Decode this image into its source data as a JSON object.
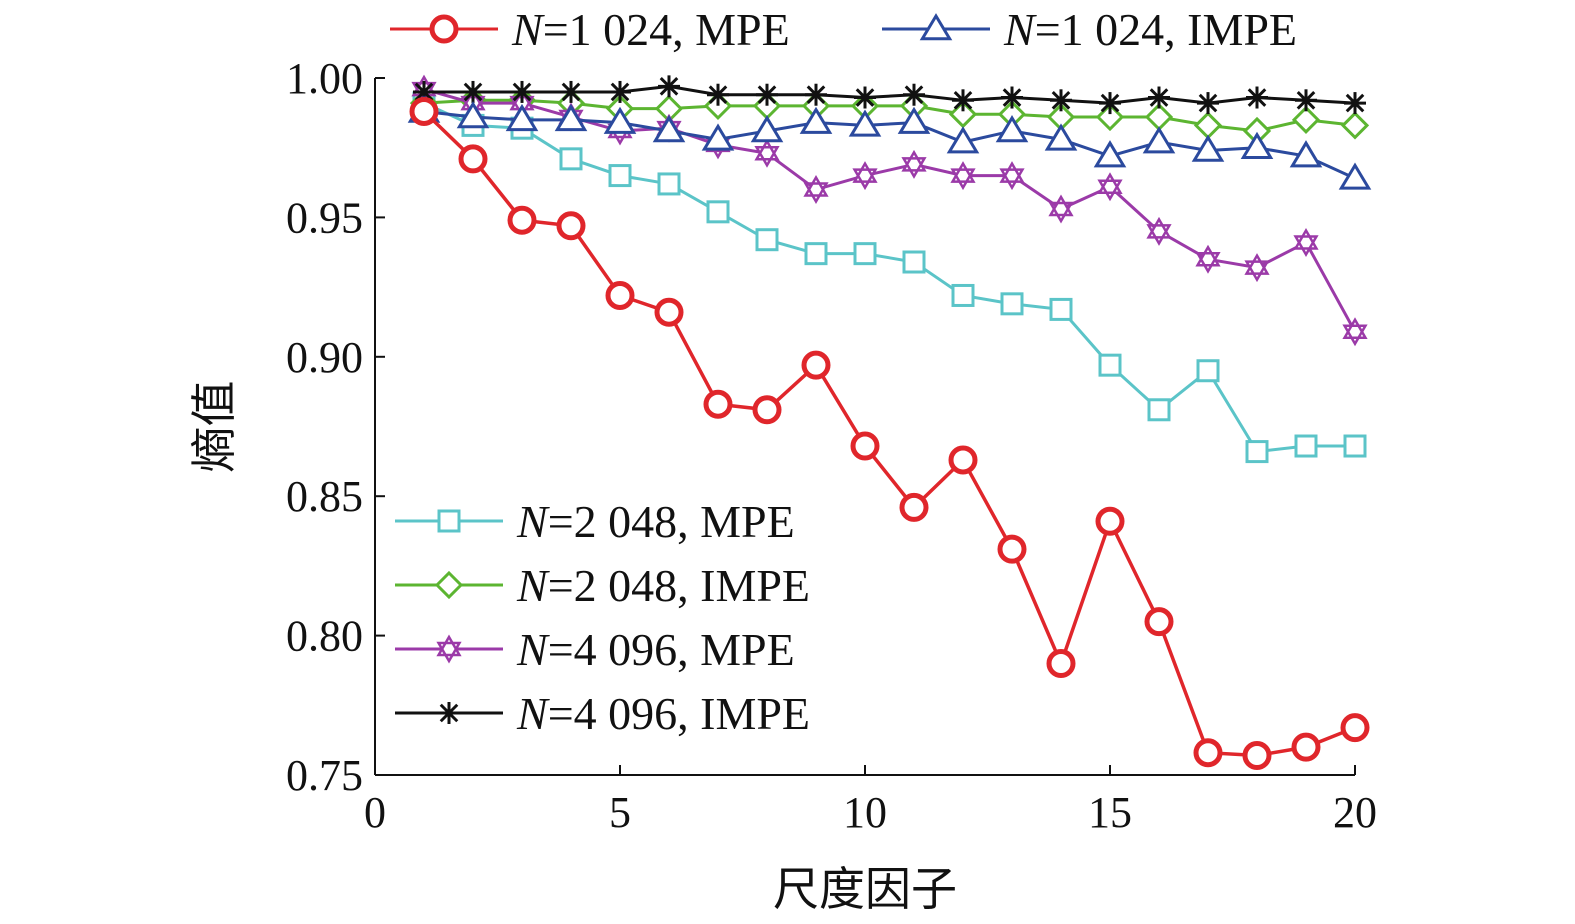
{
  "chart_data": {
    "type": "line",
    "title": "",
    "xlabel": "尺度因子",
    "ylabel": "熵值",
    "xlim": [
      0,
      20
    ],
    "ylim": [
      0.75,
      1.0
    ],
    "xticks": [
      0,
      5,
      10,
      15,
      20
    ],
    "xtick_labels": [
      "0",
      "5",
      "10",
      "15",
      "20"
    ],
    "yticks": [
      0.75,
      0.8,
      0.85,
      0.9,
      0.95,
      1.0
    ],
    "ytick_labels": [
      "0.75",
      "0.80",
      "0.85",
      "0.90",
      "0.95",
      "1.00"
    ],
    "x": [
      1,
      2,
      3,
      4,
      5,
      6,
      7,
      8,
      9,
      10,
      11,
      12,
      13,
      14,
      15,
      16,
      17,
      18,
      19,
      20
    ],
    "series": [
      {
        "name_italic": "N",
        "name_rest": "=1 024, MPE",
        "color": "#e0262b",
        "marker": "circle",
        "values": [
          0.988,
          0.971,
          0.949,
          0.947,
          0.922,
          0.916,
          0.883,
          0.881,
          0.897,
          0.868,
          0.846,
          0.863,
          0.831,
          0.79,
          0.841,
          0.805,
          0.758,
          0.757,
          0.76,
          0.767
        ]
      },
      {
        "name_italic": "N",
        "name_rest": "=1 024, IMPE",
        "color": "#2b4a9e",
        "marker": "triangle",
        "values": [
          0.988,
          0.986,
          0.985,
          0.985,
          0.984,
          0.981,
          0.978,
          0.981,
          0.984,
          0.983,
          0.984,
          0.977,
          0.981,
          0.978,
          0.972,
          0.977,
          0.974,
          0.975,
          0.972,
          0.964
        ]
      },
      {
        "name_italic": "N",
        "name_rest": "=2 048, MPE",
        "color": "#5bc4c8",
        "marker": "square",
        "values": [
          0.991,
          0.983,
          0.982,
          0.971,
          0.965,
          0.962,
          0.952,
          0.942,
          0.937,
          0.937,
          0.934,
          0.922,
          0.919,
          0.917,
          0.897,
          0.881,
          0.895,
          0.866,
          0.868,
          0.868
        ]
      },
      {
        "name_italic": "N",
        "name_rest": "=2 048, IMPE",
        "color": "#5cb531",
        "marker": "diamond",
        "values": [
          0.991,
          0.992,
          0.992,
          0.991,
          0.989,
          0.989,
          0.99,
          0.99,
          0.99,
          0.99,
          0.99,
          0.987,
          0.987,
          0.986,
          0.986,
          0.986,
          0.983,
          0.981,
          0.985,
          0.983
        ]
      },
      {
        "name_italic": "N",
        "name_rest": "=4 096, MPE",
        "color": "#9b3aa8",
        "marker": "hexagram",
        "values": [
          0.996,
          0.991,
          0.991,
          0.986,
          0.981,
          0.982,
          0.976,
          0.973,
          0.96,
          0.965,
          0.969,
          0.965,
          0.965,
          0.953,
          0.961,
          0.945,
          0.935,
          0.932,
          0.941,
          0.909
        ]
      },
      {
        "name_italic": "N",
        "name_rest": "=4 096, IMPE",
        "color": "#111111",
        "marker": "asterisk",
        "values": [
          0.995,
          0.995,
          0.995,
          0.995,
          0.995,
          0.997,
          0.994,
          0.994,
          0.994,
          0.993,
          0.994,
          0.992,
          0.993,
          0.992,
          0.991,
          0.993,
          0.991,
          0.993,
          0.992,
          0.991
        ]
      }
    ]
  }
}
